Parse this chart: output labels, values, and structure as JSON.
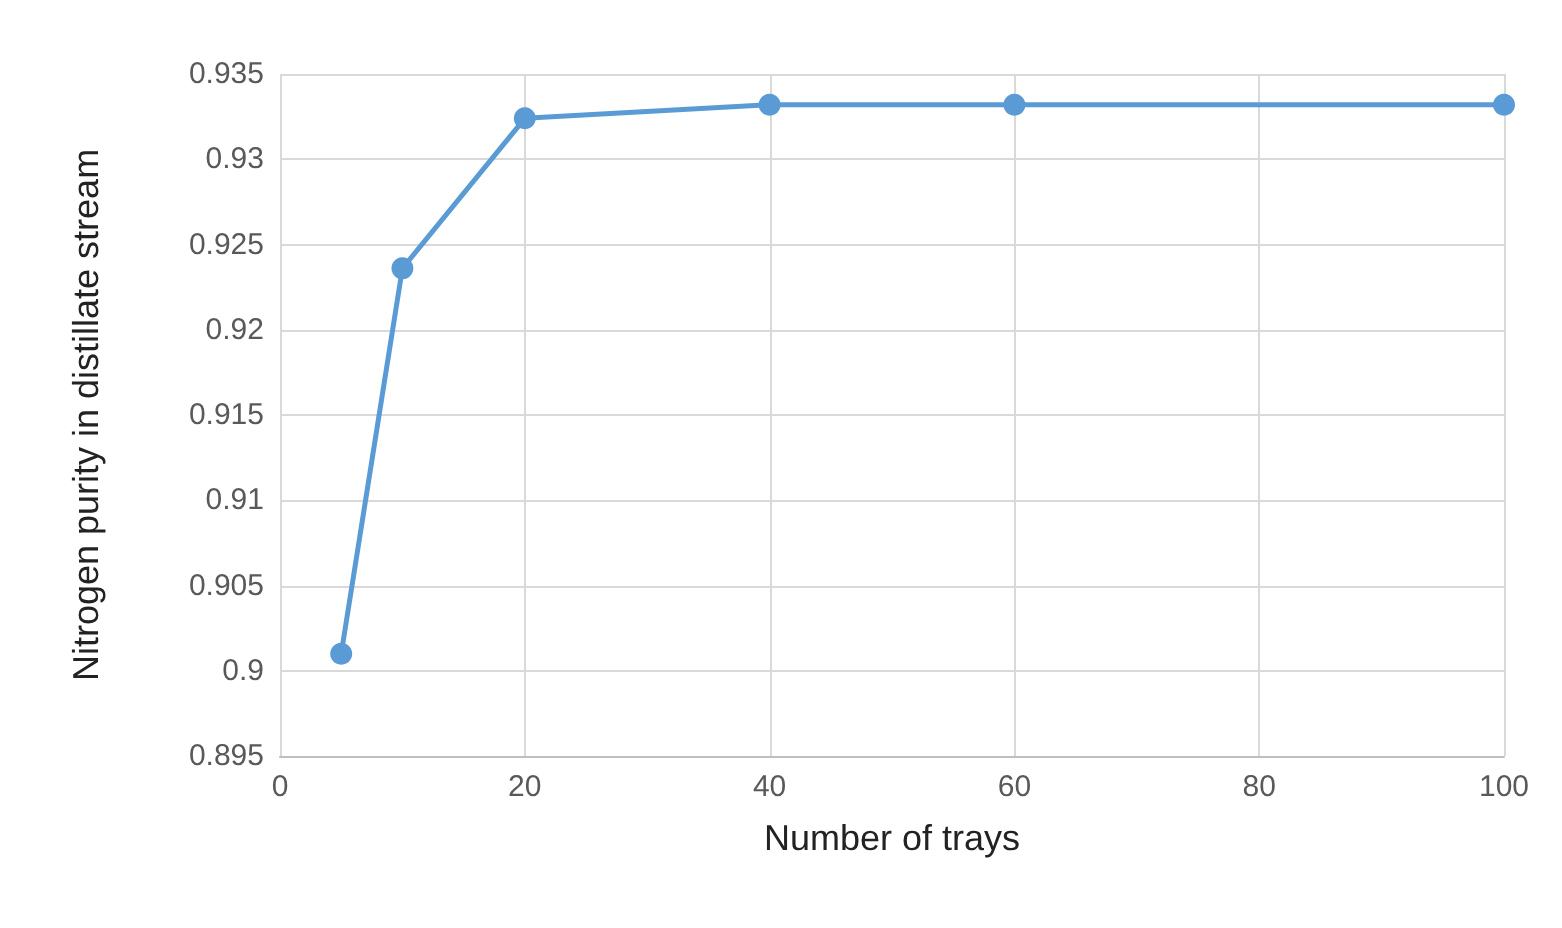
{
  "chart_data": {
    "type": "line",
    "xlabel": "Number of trays",
    "ylabel": "Nitrogen purity in distillate stream",
    "x": [
      5,
      10,
      20,
      40,
      60,
      100
    ],
    "series": [
      {
        "color": "#5b9bd5",
        "values": [
          0.901,
          0.9236,
          0.9324,
          0.9332,
          0.9332,
          0.9332
        ]
      }
    ],
    "xlim": [
      0,
      100
    ],
    "xticks": [
      0,
      20,
      40,
      60,
      80,
      100
    ],
    "ylim": [
      0.895,
      0.935
    ],
    "yticks": [
      0.895,
      0.9,
      0.905,
      0.91,
      0.915,
      0.92,
      0.925,
      0.93,
      0.935
    ],
    "grid": true,
    "marker": "circle",
    "line_style": "solid"
  }
}
